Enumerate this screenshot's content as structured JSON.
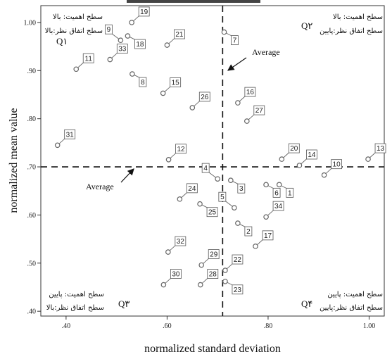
{
  "chart_data": {
    "type": "scatter",
    "title": "",
    "xlabel": "normalized standard deviation",
    "ylabel": "normalized mean value",
    "xlim": [
      0.35,
      1.03
    ],
    "ylim": [
      0.39,
      1.035
    ],
    "x_ticks": [
      {
        "value": 0.4,
        "label": ".40"
      },
      {
        "value": 0.6,
        "label": ".60"
      },
      {
        "value": 0.8,
        "label": ".80"
      },
      {
        "value": 1.0,
        "label": "1.00"
      }
    ],
    "y_ticks": [
      {
        "value": 0.4,
        "label": ".40"
      },
      {
        "value": 0.5,
        "label": ".50"
      },
      {
        "value": 0.6,
        "label": ".60"
      },
      {
        "value": 0.7,
        "label": ".70"
      },
      {
        "value": 0.8,
        "label": ".80"
      },
      {
        "value": 0.9,
        "label": ".90"
      },
      {
        "value": 1.0,
        "label": "1.00"
      }
    ],
    "reference_lines": {
      "x": 0.71,
      "y": 0.7,
      "label": "Average"
    },
    "points": [
      {
        "id": "1",
        "x": 0.822,
        "y": 0.663,
        "label_dir": "dr"
      },
      {
        "id": "2",
        "x": 0.74,
        "y": 0.583,
        "label_dir": "dr"
      },
      {
        "id": "3",
        "x": 0.726,
        "y": 0.672,
        "label_dir": "dr"
      },
      {
        "id": "4",
        "x": 0.7,
        "y": 0.675,
        "label_dir": "ul"
      },
      {
        "id": "5",
        "x": 0.733,
        "y": 0.615,
        "label_dir": "ul"
      },
      {
        "id": "6",
        "x": 0.796,
        "y": 0.663,
        "label_dir": "dr"
      },
      {
        "id": "7",
        "x": 0.713,
        "y": 0.98,
        "label_dir": "dr"
      },
      {
        "id": "8",
        "x": 0.531,
        "y": 0.893,
        "label_dir": "dr"
      },
      {
        "id": "9",
        "x": 0.508,
        "y": 0.963,
        "label_dir": "ul"
      },
      {
        "id": "10",
        "x": 0.911,
        "y": 0.683,
        "label_dir": "ur"
      },
      {
        "id": "11",
        "x": 0.42,
        "y": 0.903,
        "label_dir": "ur"
      },
      {
        "id": "12",
        "x": 0.603,
        "y": 0.715,
        "label_dir": "ur"
      },
      {
        "id": "13",
        "x": 0.998,
        "y": 0.716,
        "label_dir": "ur"
      },
      {
        "id": "14",
        "x": 0.862,
        "y": 0.703,
        "label_dir": "ur"
      },
      {
        "id": "15",
        "x": 0.592,
        "y": 0.853,
        "label_dir": "ur"
      },
      {
        "id": "16",
        "x": 0.74,
        "y": 0.833,
        "label_dir": "ur"
      },
      {
        "id": "17",
        "x": 0.775,
        "y": 0.535,
        "label_dir": "ur"
      },
      {
        "id": "18",
        "x": 0.522,
        "y": 0.972,
        "label_dir": "dr"
      },
      {
        "id": "19",
        "x": 0.53,
        "y": 1.0,
        "label_dir": "ur"
      },
      {
        "id": "20",
        "x": 0.827,
        "y": 0.716,
        "label_dir": "ur"
      },
      {
        "id": "21",
        "x": 0.6,
        "y": 0.953,
        "label_dir": "ur"
      },
      {
        "id": "22",
        "x": 0.715,
        "y": 0.485,
        "label_dir": "ur"
      },
      {
        "id": "23",
        "x": 0.715,
        "y": 0.462,
        "label_dir": "dr"
      },
      {
        "id": "24",
        "x": 0.625,
        "y": 0.633,
        "label_dir": "ur"
      },
      {
        "id": "25",
        "x": 0.665,
        "y": 0.623,
        "label_dir": "dr"
      },
      {
        "id": "26",
        "x": 0.65,
        "y": 0.823,
        "label_dir": "ur"
      },
      {
        "id": "27",
        "x": 0.758,
        "y": 0.795,
        "label_dir": "ur"
      },
      {
        "id": "28",
        "x": 0.666,
        "y": 0.455,
        "label_dir": "ur"
      },
      {
        "id": "29",
        "x": 0.668,
        "y": 0.496,
        "label_dir": "ur"
      },
      {
        "id": "30",
        "x": 0.593,
        "y": 0.455,
        "label_dir": "ur"
      },
      {
        "id": "31",
        "x": 0.383,
        "y": 0.745,
        "label_dir": "ur"
      },
      {
        "id": "32",
        "x": 0.602,
        "y": 0.523,
        "label_dir": "ur"
      },
      {
        "id": "33",
        "x": 0.487,
        "y": 0.923,
        "label_dir": "ur"
      },
      {
        "id": "34",
        "x": 0.796,
        "y": 0.596,
        "label_dir": "ur"
      }
    ],
    "quadrants": [
      {
        "id": "Q1",
        "display": "Q۱",
        "line1": "سطح اهمیت: بالا",
        "line2": "سطح اتفاق نظر:بالا",
        "corner": "top-left"
      },
      {
        "id": "Q2",
        "display": "Q۲",
        "line1": "سطح اهمیت: بالا",
        "line2": "سطح اتفاق نظر:پایین",
        "corner": "top-right"
      },
      {
        "id": "Q3",
        "display": "Q۳",
        "line1": "سطح اهمیت: پایین",
        "line2": "سطح اتفاق نظر:بالا",
        "corner": "bottom-left"
      },
      {
        "id": "Q4",
        "display": "Q۴",
        "line1": "سطح اهمیت: پایین",
        "line2": "سطح اتفاق نظر:پایین",
        "corner": "bottom-right"
      }
    ],
    "grid": false,
    "legend": "none"
  }
}
